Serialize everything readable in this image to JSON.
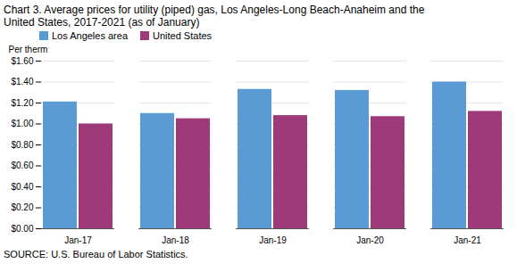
{
  "chart_data": {
    "type": "bar",
    "title": "Chart 3. Average prices for utility (piped) gas, Los Angeles-Long Beach-Anaheim and the",
    "subtitle": "United States, 2017-2021  (as of January)",
    "ylabel": "Per therm",
    "source": "SOURCE: U.S. Bureau of Labor Statistics.",
    "categories": [
      "Jan-17",
      "Jan-18",
      "Jan-19",
      "Jan-20",
      "Jan-21"
    ],
    "series": [
      {
        "name": "Los Angeles area",
        "color": "#5B9BD5",
        "values": [
          1.21,
          1.1,
          1.33,
          1.32,
          1.4
        ]
      },
      {
        "name": "United States",
        "color": "#9E3A7A",
        "values": [
          1.0,
          1.05,
          1.08,
          1.07,
          1.12
        ]
      }
    ],
    "ylim": [
      0.0,
      1.6
    ],
    "yticks": [
      {
        "value": 0.0,
        "label": "$0.00"
      },
      {
        "value": 0.2,
        "label": "$0.20"
      },
      {
        "value": 0.4,
        "label": "$0.40"
      },
      {
        "value": 0.6,
        "label": "$0.60"
      },
      {
        "value": 0.8,
        "label": "$0.80"
      },
      {
        "value": 1.0,
        "label": "$1.00"
      },
      {
        "value": 1.2,
        "label": "$1.20"
      },
      {
        "value": 1.4,
        "label": "$1.40"
      },
      {
        "value": 1.6,
        "label": "$1.60"
      }
    ],
    "grid": true,
    "legend": "upper left"
  }
}
